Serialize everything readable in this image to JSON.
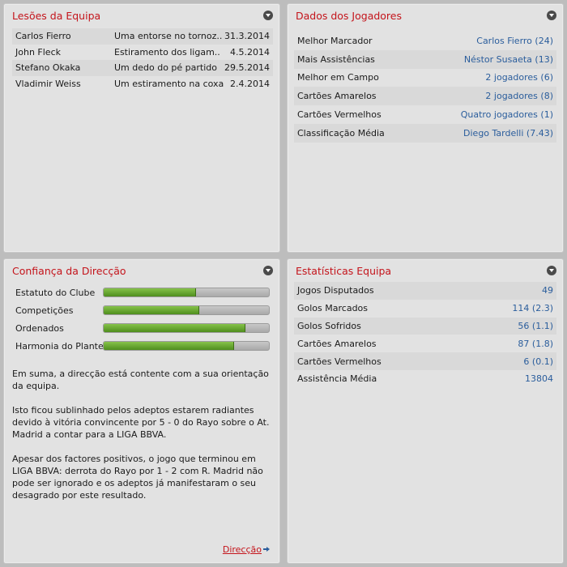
{
  "injuries": {
    "title": "Lesões da Equipa",
    "rows": [
      {
        "name": "Carlos Fierro",
        "injury": "Uma entorse no tornoz..",
        "date": "31.3.2014"
      },
      {
        "name": "John Fleck",
        "injury": "Estiramento dos ligam..",
        "date": "4.5.2014"
      },
      {
        "name": "Stefano Okaka",
        "injury": "Um dedo do pé partido",
        "date": "29.5.2014"
      },
      {
        "name": "Vladimir Weiss",
        "injury": "Um estiramento na coxa",
        "date": "2.4.2014"
      }
    ]
  },
  "players": {
    "title": "Dados dos Jogadores",
    "rows": [
      {
        "label": "Melhor Marcador",
        "value": "Carlos Fierro (24)"
      },
      {
        "label": "Mais Assistências",
        "value": "Néstor Susaeta (13)"
      },
      {
        "label": "Melhor em Campo",
        "value": "2 jogadores (6)"
      },
      {
        "label": "Cartões Amarelos",
        "value": "2 jogadores (8)"
      },
      {
        "label": "Cartões Vermelhos",
        "value": "Quatro jogadores (1)"
      },
      {
        "label": "Classificação Média",
        "value": "Diego Tardelli (7.43)"
      }
    ]
  },
  "confidence": {
    "title": "Confiança da Direcção",
    "bars": [
      {
        "label": "Estatuto do Clube",
        "level": 0.56
      },
      {
        "label": "Competições",
        "level": 0.58
      },
      {
        "label": "Ordenados",
        "level": 0.86
      },
      {
        "label": "Harmonia do Plantel",
        "level": 0.79
      }
    ],
    "paragraphs": [
      "Em suma, a direcção está contente com a sua orientação da equipa.",
      "Isto ficou sublinhado pelos adeptos estarem radiantes devido à vitória convincente por 5 - 0 do Rayo sobre o At. Madrid a contar para a LIGA BBVA.",
      "Apesar dos factores positivos, o jogo que terminou em LIGA BBVA: derrota do Rayo por 1 - 2 com R. Madrid não pode ser ignorado e os adeptos já manifestaram o seu desagrado por este resultado."
    ],
    "link_label": "Direcção"
  },
  "stats": {
    "title": "Estatísticas Equipa",
    "rows": [
      {
        "label": "Jogos Disputados",
        "value": "49"
      },
      {
        "label": "Golos Marcados",
        "value": "114 (2.3)"
      },
      {
        "label": "Golos Sofridos",
        "value": "56 (1.1)"
      },
      {
        "label": "Cartões Amarelos",
        "value": "87 (1.8)"
      },
      {
        "label": "Cartões Vermelhos",
        "value": "6 (0.1)"
      },
      {
        "label": "Assistência Média",
        "value": "13804"
      }
    ]
  },
  "colors": {
    "title_red": "#c4141b",
    "value_blue": "#2a5d9c",
    "bar_green": "#6aa834"
  }
}
